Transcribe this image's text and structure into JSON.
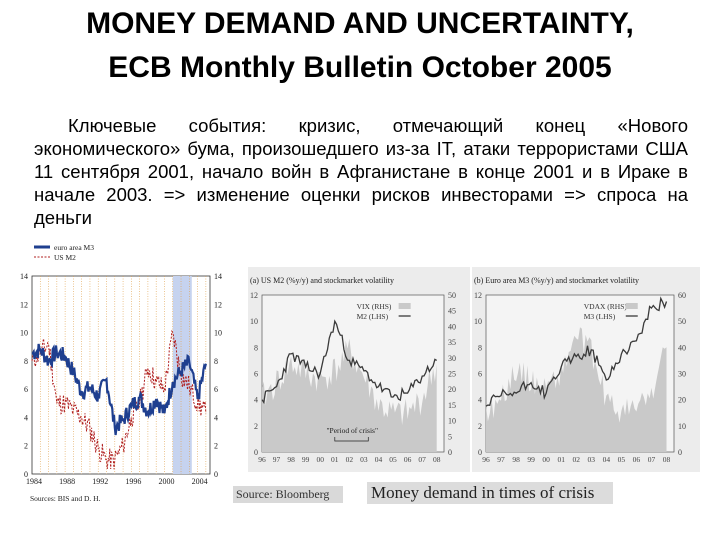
{
  "slide": {
    "title_line1": "MONEY DEMAND AND UNCERTAINTY,",
    "title_line2": "ECB Monthly Bulletin October 2005",
    "body": "Ключевые события: кризис, отмечающий конец «Нового экономического» бума, произошедшего из-за IT, атаки террористами США 11 сентября 2001, начало войн в Афганистане в конце 2001 и в Ираке в начале 2003. => изменение оценки рисков инвесторами => спроса на деньги",
    "source_bloomberg": "Source: Bloomberg",
    "caption": "Money demand in times of crisis"
  },
  "colors": {
    "euro_m3": "#1f3f8f",
    "us_m2": "#b01f1f",
    "shaded_period": "#c6d3ef",
    "vol_shade": "#c9c9c9",
    "m2_line": "#3a3a3a"
  },
  "chart_data": [
    {
      "type": "line",
      "legend": [
        "euro area M3",
        "US M2"
      ],
      "x_ticks": [
        "1984",
        "1988",
        "1992",
        "1996",
        "2000",
        "2004"
      ],
      "y_ticks_left": [
        "14",
        "12",
        "10",
        "8",
        "6",
        "4",
        "2",
        "0"
      ],
      "y_ticks_right": [
        "14",
        "12",
        "10",
        "8",
        "6",
        "4",
        "2",
        "0"
      ],
      "ylim": [
        0,
        14
      ],
      "xlim": [
        1984,
        2005.5
      ],
      "shaded_period": [
        2001,
        2003.3
      ],
      "source": "Sources: BIS and D. H.",
      "series": [
        {
          "name": "euro area M3",
          "x": [
            1984,
            1985,
            1986,
            1987,
            1988,
            1989,
            1990,
            1991,
            1992,
            1993,
            1994,
            1995,
            1996,
            1997,
            1998,
            1999,
            2000,
            2001,
            2002,
            2003,
            2004,
            2005
          ],
          "values": [
            8.5,
            8.8,
            8.0,
            8.6,
            8.3,
            7.2,
            5.8,
            6.1,
            5.5,
            6.7,
            3.3,
            3.8,
            4.8,
            5.4,
            4.4,
            5.3,
            4.3,
            6.5,
            7.3,
            7.9,
            5.3,
            7.8
          ]
        },
        {
          "name": "US M2",
          "x": [
            1984,
            1985,
            1986,
            1987,
            1988,
            1989,
            1990,
            1991,
            1992,
            1993,
            1994,
            1995,
            1996,
            1997,
            1998,
            1999,
            2000,
            2001,
            2002,
            2003,
            2004,
            2005
          ],
          "values": [
            8.0,
            8.6,
            9.2,
            5.0,
            5.0,
            4.5,
            4.0,
            3.2,
            1.8,
            1.0,
            1.0,
            2.0,
            4.0,
            5.0,
            7.5,
            6.5,
            6.0,
            10.0,
            7.0,
            6.2,
            5.0,
            4.3
          ]
        }
      ]
    },
    {
      "type": "line",
      "title": "(a) US M2 (%y/y) and stockmarket volatility",
      "legend": [
        "VIX (RHS)",
        "M2 (LHS)"
      ],
      "annotation": "\"Period of crisis\"",
      "x_ticks": [
        "96",
        "97",
        "98",
        "99",
        "00",
        "01",
        "02",
        "03",
        "04",
        "05",
        "06",
        "07",
        "08"
      ],
      "y_ticks_left": [
        "12",
        "10",
        "8",
        "6",
        "4",
        "2",
        "0"
      ],
      "y_ticks_right": [
        "50",
        "45",
        "40",
        "35",
        "30",
        "25",
        "20",
        "15",
        "10",
        "5",
        "0"
      ],
      "ylim_left": [
        0,
        12
      ],
      "ylim_right": [
        0,
        50
      ],
      "series": [
        {
          "name": "M2 (LHS)",
          "x": [
            1996,
            1997,
            1998,
            1999,
            2000,
            2001,
            2002,
            2003,
            2004,
            2005,
            2006,
            2007,
            2008
          ],
          "values": [
            4.0,
            5.0,
            7.5,
            6.5,
            6.0,
            10.0,
            7.0,
            6.2,
            5.0,
            4.2,
            4.5,
            5.8,
            7.0
          ]
        },
        {
          "name": "VIX (RHS)",
          "x": [
            1996,
            1997,
            1998,
            1999,
            2000,
            2001,
            2002,
            2003,
            2004,
            2005,
            2006,
            2007,
            2008
          ],
          "values": [
            17,
            22,
            28,
            25,
            23,
            26,
            32,
            24,
            15,
            12,
            12,
            17,
            28
          ]
        }
      ]
    },
    {
      "type": "line",
      "title": "(b) Euro area M3 (%y/y) and stockmarket volatility",
      "legend": [
        "VDAX (RHS)",
        "M3 (LHS)"
      ],
      "x_ticks": [
        "96",
        "97",
        "98",
        "99",
        "00",
        "01",
        "02",
        "03",
        "04",
        "05",
        "06",
        "07",
        "08"
      ],
      "y_ticks_left": [
        "12",
        "10",
        "8",
        "6",
        "4",
        "2",
        "0"
      ],
      "y_ticks_right": [
        "60",
        "50",
        "40",
        "30",
        "20",
        "10",
        "0"
      ],
      "ylim_left": [
        0,
        12
      ],
      "ylim_right": [
        0,
        60
      ],
      "series": [
        {
          "name": "M3 (LHS)",
          "x": [
            1996,
            1997,
            1998,
            1999,
            2000,
            2001,
            2002,
            2003,
            2004,
            2005,
            2006,
            2007,
            2008
          ],
          "values": [
            3.5,
            4.3,
            4.5,
            5.3,
            4.5,
            6.5,
            7.3,
            7.8,
            5.5,
            7.5,
            8.5,
            11.0,
            11.5
          ]
        },
        {
          "name": "VDAX (RHS)",
          "x": [
            1996,
            1997,
            1998,
            1999,
            2000,
            2001,
            2002,
            2003,
            2004,
            2005,
            2006,
            2007,
            2008
          ],
          "values": [
            15,
            20,
            32,
            27,
            25,
            30,
            45,
            38,
            20,
            15,
            17,
            22,
            40
          ]
        }
      ]
    }
  ]
}
